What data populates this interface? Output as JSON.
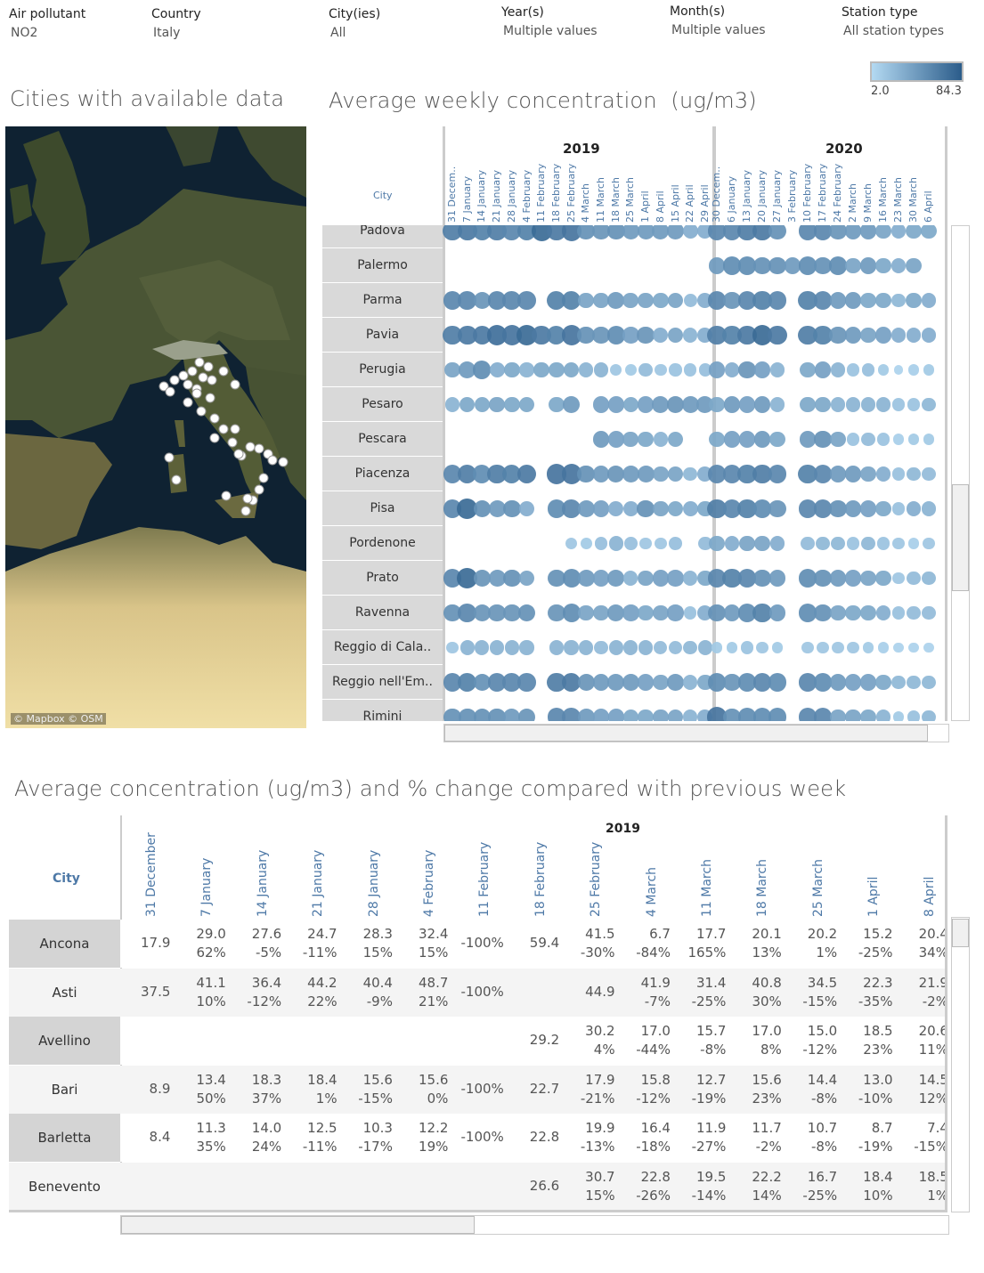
{
  "filters": [
    {
      "label": "Air pollutant",
      "value": "NO2"
    },
    {
      "label": "Country",
      "value": "Italy"
    },
    {
      "label": "City(ies)",
      "value": "All"
    },
    {
      "label": "Year(s)",
      "value": "Multiple values"
    },
    {
      "label": "Month(s)",
      "value": "Multiple values"
    },
    {
      "label": "Station type",
      "value": "All station types"
    }
  ],
  "legend": {
    "min": "2.0",
    "max": "84.3",
    "color_low": "#b3d9f2",
    "color_high": "#2b5c8a"
  },
  "map": {
    "title": "Cities with available data",
    "attribution": "© Mapbox © OSM"
  },
  "chart_data": {
    "type": "scatter",
    "title": "Average weekly concentration  (ug/m3)",
    "row_header": "City",
    "years": [
      {
        "year": "2019",
        "weeks": [
          "31 Decem..",
          "7 January",
          "14 January",
          "21 January",
          "28 January",
          "4 February",
          "11 February",
          "18 February",
          "25 February",
          "4 March",
          "11 March",
          "18 March",
          "25 March",
          "1 April",
          "8 April",
          "15 April",
          "22 April",
          "29 April"
        ]
      },
      {
        "year": "2020",
        "weeks": [
          "30 Decem..",
          "6 January",
          "13 January",
          "20 January",
          "27 January",
          "3 February",
          "10 February",
          "17 February",
          "24 February",
          "2 March",
          "9 March",
          "16 March",
          "23 March",
          "30 March",
          "6 April"
        ]
      }
    ],
    "value_range": [
      2.0,
      84.3
    ],
    "series": [
      {
        "name": "Padova",
        "v2019": [
          50,
          52,
          48,
          50,
          45,
          48,
          60,
          52,
          55,
          40,
          38,
          40,
          35,
          35,
          35,
          35,
          25,
          25
        ],
        "v2020": [
          45,
          45,
          50,
          52,
          40,
          null,
          45,
          45,
          38,
          35,
          35,
          30,
          25,
          28,
          28
        ]
      },
      {
        "name": "Palermo",
        "v2019": [
          null,
          null,
          null,
          null,
          null,
          null,
          null,
          null,
          null,
          null,
          null,
          null,
          null,
          null,
          null,
          null,
          null,
          null
        ],
        "v2020": [
          35,
          42,
          42,
          40,
          40,
          35,
          42,
          40,
          42,
          30,
          35,
          28,
          25,
          30,
          null
        ]
      },
      {
        "name": "Parma",
        "v2019": [
          45,
          45,
          38,
          45,
          45,
          45,
          null,
          48,
          48,
          30,
          30,
          35,
          30,
          30,
          28,
          30,
          18,
          25
        ],
        "v2020": [
          45,
          38,
          45,
          48,
          45,
          null,
          48,
          45,
          35,
          35,
          28,
          28,
          20,
          28,
          25
        ]
      },
      {
        "name": "Pavia",
        "v2019": [
          50,
          52,
          52,
          58,
          55,
          60,
          52,
          48,
          55,
          40,
          38,
          42,
          32,
          38,
          25,
          30,
          22,
          25
        ],
        "v2020": [
          50,
          48,
          52,
          60,
          52,
          null,
          50,
          48,
          38,
          35,
          30,
          32,
          25,
          25,
          25
        ]
      },
      {
        "name": "Perugia",
        "v2019": [
          30,
          35,
          42,
          25,
          28,
          22,
          28,
          28,
          28,
          22,
          22,
          12,
          10,
          18,
          12,
          14,
          14,
          16
        ],
        "v2020": [
          32,
          25,
          38,
          32,
          22,
          null,
          28,
          32,
          22,
          14,
          16,
          10,
          5,
          8,
          10
        ]
      },
      {
        "name": "Pesaro",
        "v2019": [
          22,
          28,
          28,
          30,
          28,
          28,
          null,
          28,
          35,
          null,
          32,
          32,
          28,
          32,
          35,
          38,
          35,
          35
        ],
        "v2020": [
          28,
          35,
          32,
          35,
          22,
          null,
          28,
          28,
          22,
          22,
          22,
          22,
          14,
          14,
          20
        ]
      },
      {
        "name": "Pescara",
        "v2019": [
          null,
          null,
          null,
          null,
          null,
          null,
          null,
          null,
          null,
          null,
          35,
          32,
          30,
          28,
          22,
          28,
          null,
          null
        ],
        "v2020": [
          28,
          32,
          32,
          35,
          28,
          null,
          35,
          40,
          30,
          14,
          18,
          14,
          8,
          10,
          10
        ]
      },
      {
        "name": "Piacenza",
        "v2019": [
          45,
          50,
          42,
          50,
          48,
          52,
          null,
          55,
          55,
          40,
          35,
          38,
          35,
          35,
          30,
          30,
          20,
          25
        ],
        "v2020": [
          45,
          45,
          48,
          50,
          45,
          null,
          48,
          45,
          35,
          35,
          30,
          25,
          15,
          20,
          18
        ]
      },
      {
        "name": "Pisa",
        "v2019": [
          45,
          60,
          40,
          35,
          40,
          25,
          null,
          42,
          45,
          35,
          32,
          25,
          25,
          40,
          30,
          28,
          25,
          28
        ],
        "v2020": [
          50,
          45,
          48,
          42,
          38,
          null,
          45,
          45,
          40,
          35,
          32,
          28,
          15,
          25,
          22
        ]
      },
      {
        "name": "Pordenone",
        "v2019": [
          null,
          null,
          null,
          null,
          null,
          null,
          null,
          null,
          12,
          10,
          16,
          22,
          16,
          12,
          12,
          16,
          null,
          18
        ],
        "v2020": [
          28,
          25,
          30,
          30,
          25,
          null,
          18,
          20,
          20,
          14,
          20,
          14,
          12,
          8,
          12
        ]
      },
      {
        "name": "Prato",
        "v2019": [
          45,
          60,
          38,
          35,
          40,
          30,
          null,
          40,
          42,
          35,
          32,
          35,
          22,
          30,
          32,
          32,
          22,
          28
        ],
        "v2020": [
          45,
          48,
          45,
          40,
          35,
          null,
          42,
          40,
          35,
          32,
          30,
          28,
          12,
          18,
          20
        ]
      },
      {
        "name": "Ravenna",
        "v2019": [
          40,
          45,
          38,
          38,
          38,
          40,
          null,
          38,
          42,
          30,
          30,
          35,
          32,
          28,
          30,
          32,
          15,
          25
        ],
        "v2020": [
          40,
          35,
          42,
          48,
          35,
          null,
          42,
          40,
          30,
          28,
          28,
          25,
          15,
          18,
          18
        ]
      },
      {
        "name": "Reggio di Cala..",
        "v2019": [
          12,
          22,
          22,
          22,
          22,
          22,
          null,
          22,
          22,
          22,
          18,
          22,
          22,
          22,
          18,
          18,
          20,
          22
        ],
        "v2020": [
          10,
          10,
          14,
          12,
          10,
          null,
          12,
          12,
          12,
          12,
          10,
          8,
          6,
          6,
          6
        ]
      },
      {
        "name": "Reggio nell'Em..",
        "v2019": [
          45,
          48,
          40,
          45,
          45,
          45,
          null,
          50,
          52,
          38,
          35,
          35,
          35,
          32,
          30,
          35,
          22,
          28
        ],
        "v2020": [
          42,
          38,
          42,
          45,
          42,
          null,
          45,
          42,
          35,
          32,
          32,
          28,
          20,
          20,
          20
        ]
      },
      {
        "name": "Rimini",
        "v2019": [
          40,
          40,
          40,
          40,
          35,
          38,
          null,
          45,
          45,
          35,
          32,
          32,
          28,
          28,
          30,
          30,
          22,
          25
        ],
        "v2020": [
          55,
          40,
          42,
          42,
          42,
          null,
          45,
          45,
          30,
          30,
          28,
          22,
          10,
          15,
          20
        ]
      }
    ]
  },
  "table": {
    "title": "Average concentration (ug/m3) and % change compared with previous week",
    "year": "2019",
    "city_header": "City",
    "columns": [
      "31 December",
      "7 January",
      "14 January",
      "21 January",
      "28 January",
      "4 February",
      "11 February",
      "18 February",
      "25 February",
      "4 March",
      "11 March",
      "18 March",
      "25 March",
      "1 April",
      "8 April"
    ],
    "rows": [
      {
        "city": "Ancona",
        "cells": [
          [
            "17.9"
          ],
          [
            "29.0",
            "62%"
          ],
          [
            "27.6",
            "-5%"
          ],
          [
            "24.7",
            "-11%"
          ],
          [
            "28.3",
            "15%"
          ],
          [
            "32.4",
            "15%"
          ],
          [
            "-100%"
          ],
          [
            "59.4"
          ],
          [
            "41.5",
            "-30%"
          ],
          [
            "6.7",
            "-84%"
          ],
          [
            "17.7",
            "165%"
          ],
          [
            "20.1",
            "13%"
          ],
          [
            "20.2",
            "1%"
          ],
          [
            "15.2",
            "-25%"
          ],
          [
            "20.4",
            "34%"
          ]
        ]
      },
      {
        "city": "Asti",
        "cells": [
          [
            "37.5"
          ],
          [
            "41.1",
            "10%"
          ],
          [
            "36.4",
            "-12%"
          ],
          [
            "44.2",
            "22%"
          ],
          [
            "40.4",
            "-9%"
          ],
          [
            "48.7",
            "21%"
          ],
          [
            "-100%"
          ],
          null,
          [
            "44.9"
          ],
          [
            "41.9",
            "-7%"
          ],
          [
            "31.4",
            "-25%"
          ],
          [
            "40.8",
            "30%"
          ],
          [
            "34.5",
            "-15%"
          ],
          [
            "22.3",
            "-35%"
          ],
          [
            "21.9",
            "-2%"
          ]
        ]
      },
      {
        "city": "Avellino",
        "cells": [
          null,
          null,
          null,
          null,
          null,
          null,
          null,
          [
            "29.2"
          ],
          [
            "30.2",
            "4%"
          ],
          [
            "17.0",
            "-44%"
          ],
          [
            "15.7",
            "-8%"
          ],
          [
            "17.0",
            "8%"
          ],
          [
            "15.0",
            "-12%"
          ],
          [
            "18.5",
            "23%"
          ],
          [
            "20.6",
            "11%"
          ]
        ]
      },
      {
        "city": "Bari",
        "cells": [
          [
            "8.9"
          ],
          [
            "13.4",
            "50%"
          ],
          [
            "18.3",
            "37%"
          ],
          [
            "18.4",
            "1%"
          ],
          [
            "15.6",
            "-15%"
          ],
          [
            "15.6",
            "0%"
          ],
          [
            "-100%"
          ],
          [
            "22.7"
          ],
          [
            "17.9",
            "-21%"
          ],
          [
            "15.8",
            "-12%"
          ],
          [
            "12.7",
            "-19%"
          ],
          [
            "15.6",
            "23%"
          ],
          [
            "14.4",
            "-8%"
          ],
          [
            "13.0",
            "-10%"
          ],
          [
            "14.5",
            "12%"
          ]
        ]
      },
      {
        "city": "Barletta",
        "cells": [
          [
            "8.4"
          ],
          [
            "11.3",
            "35%"
          ],
          [
            "14.0",
            "24%"
          ],
          [
            "12.5",
            "-11%"
          ],
          [
            "10.3",
            "-17%"
          ],
          [
            "12.2",
            "19%"
          ],
          [
            "-100%"
          ],
          [
            "22.8"
          ],
          [
            "19.9",
            "-13%"
          ],
          [
            "16.4",
            "-18%"
          ],
          [
            "11.9",
            "-27%"
          ],
          [
            "11.7",
            "-2%"
          ],
          [
            "10.7",
            "-8%"
          ],
          [
            "8.7",
            "-19%"
          ],
          [
            "7.4",
            "-15%"
          ]
        ]
      },
      {
        "city": "Benevento",
        "cells": [
          null,
          null,
          null,
          null,
          null,
          null,
          null,
          [
            "26.6"
          ],
          [
            "30.7",
            "15%"
          ],
          [
            "22.8",
            "-26%"
          ],
          [
            "19.5",
            "-14%"
          ],
          [
            "22.2",
            "14%"
          ],
          [
            "16.7",
            "-25%"
          ],
          [
            "18.4",
            "10%"
          ],
          [
            "18.5",
            "1%"
          ]
        ]
      }
    ]
  }
}
